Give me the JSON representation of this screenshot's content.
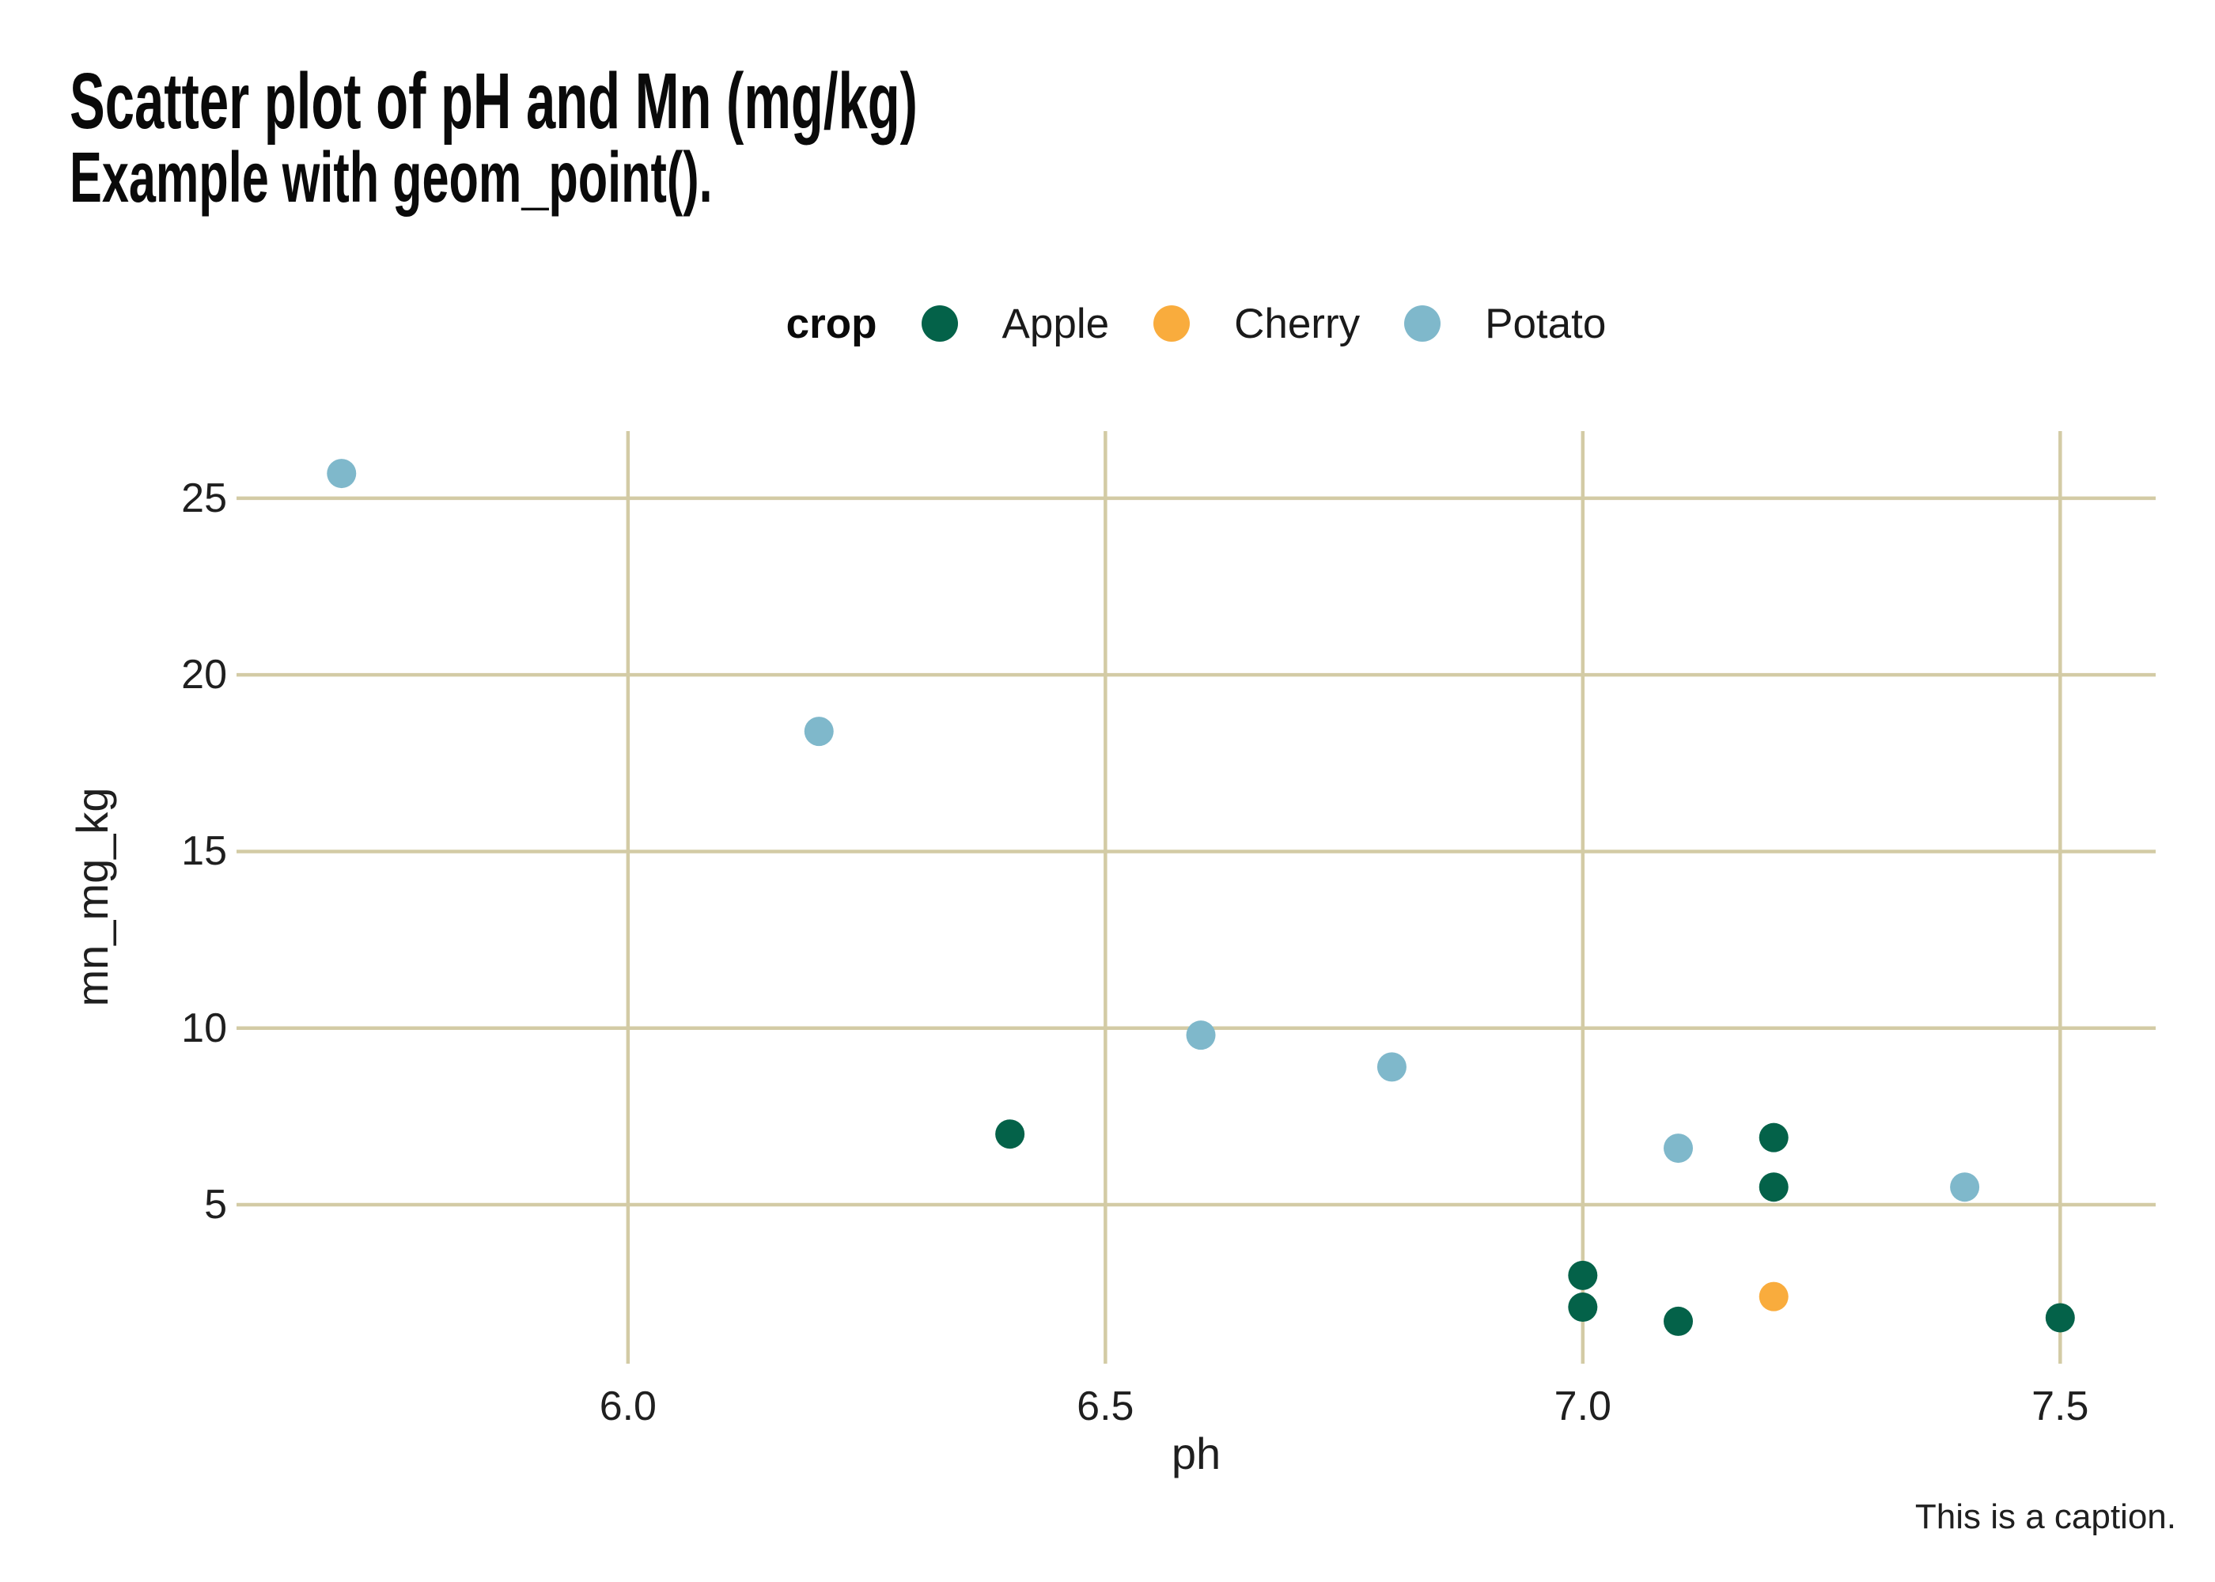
{
  "page": {
    "background": "#ffffff"
  },
  "chart_data": {
    "type": "scatter",
    "title": "Scatter plot of pH and Mn (mg/kg)",
    "subtitle": "Example with geom_point().",
    "caption": "This is a caption.",
    "xlabel": "ph",
    "ylabel": "mn_mg_kg",
    "legend_title": "crop",
    "legend_position": "top",
    "grid": true,
    "grid_color": "#d3cba5",
    "text_color": "#1f1f1f",
    "background_color": "#ffffff",
    "xlim": [
      5.59,
      7.6
    ],
    "ylim": [
      0.5,
      26.9
    ],
    "x_ticks": [
      {
        "value": 6.0,
        "label": "6.0"
      },
      {
        "value": 6.5,
        "label": "6.5"
      },
      {
        "value": 7.0,
        "label": "7.0"
      },
      {
        "value": 7.5,
        "label": "7.5"
      }
    ],
    "y_ticks": [
      {
        "value": 5,
        "label": "5"
      },
      {
        "value": 10,
        "label": "10"
      },
      {
        "value": 15,
        "label": "15"
      },
      {
        "value": 20,
        "label": "20"
      },
      {
        "value": 25,
        "label": "25"
      }
    ],
    "series": [
      {
        "name": "Apple",
        "color": "#046249",
        "points": [
          {
            "x": 6.4,
            "y": 7.0
          },
          {
            "x": 7.0,
            "y": 3.0
          },
          {
            "x": 7.0,
            "y": 2.1
          },
          {
            "x": 7.1,
            "y": 1.7
          },
          {
            "x": 7.2,
            "y": 6.9
          },
          {
            "x": 7.2,
            "y": 5.5
          },
          {
            "x": 7.5,
            "y": 1.8
          }
        ]
      },
      {
        "name": "Cherry",
        "color": "#f9ac3d",
        "points": [
          {
            "x": 7.2,
            "y": 2.4
          }
        ]
      },
      {
        "name": "Potato",
        "color": "#7fb8cb",
        "points": [
          {
            "x": 5.7,
            "y": 25.7
          },
          {
            "x": 6.2,
            "y": 18.4
          },
          {
            "x": 6.6,
            "y": 9.8
          },
          {
            "x": 6.8,
            "y": 8.9
          },
          {
            "x": 7.1,
            "y": 6.6
          },
          {
            "x": 7.4,
            "y": 5.5
          }
        ]
      }
    ]
  }
}
